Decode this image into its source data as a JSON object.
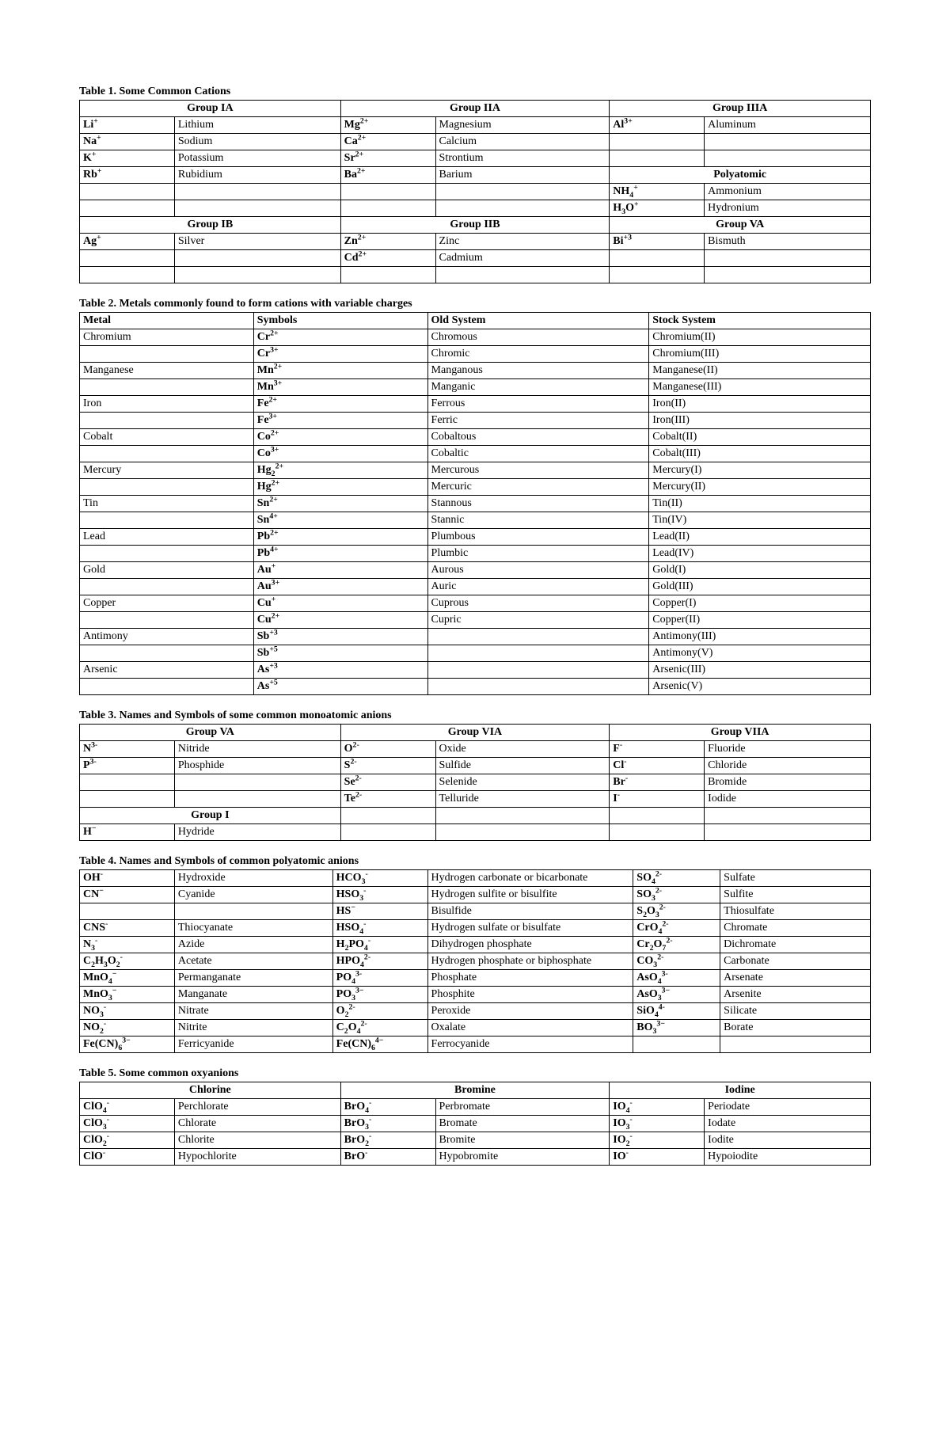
{
  "page": {
    "background_color": "#ffffff",
    "text_color": "#000000",
    "font_family": "Times New Roman",
    "body_fontsize_pt": 10.5,
    "caption_fontsize_pt": 10.5
  },
  "table1": {
    "caption": "Table 1.  Some Common Cations",
    "header_groups": [
      "Group IA",
      "Group IIA",
      "Group IIIA"
    ],
    "header_groups2": [
      "Group IB",
      "Group IIB",
      "Group VA"
    ],
    "polyatomic_label": "Polyatomic",
    "col_widths_pct": [
      12,
      21,
      12,
      22,
      12,
      21
    ],
    "rows_a": [
      [
        {
          "f": "Li",
          "c": "+"
        },
        "Lithium",
        {
          "f": "Mg",
          "c": "2+"
        },
        "Magnesium",
        {
          "f": "Al",
          "c": "3+"
        },
        "Aluminum"
      ],
      [
        {
          "f": "Na",
          "c": "+"
        },
        "Sodium",
        {
          "f": "Ca",
          "c": "2+"
        },
        "Calcium",
        null,
        null
      ],
      [
        {
          "f": "K",
          "c": "+"
        },
        "Potassium",
        {
          "f": "Sr",
          "c": "2+"
        },
        "Strontium",
        null,
        null
      ],
      [
        {
          "f": "Rb",
          "c": "+"
        },
        "Rubidium",
        {
          "f": "Ba",
          "c": "2+"
        },
        "Barium",
        "POLY_HDR",
        null
      ],
      [
        null,
        null,
        null,
        null,
        {
          "f": "NH",
          "s": "4",
          "c": "+"
        },
        "Ammonium"
      ],
      [
        null,
        null,
        null,
        null,
        {
          "f": "H",
          "s": "3",
          "f2": "O",
          "c": "+"
        },
        "Hydronium"
      ]
    ],
    "rows_b": [
      [
        {
          "f": "Ag",
          "c": "+"
        },
        "Silver",
        {
          "f": "Zn",
          "c": "2+"
        },
        "Zinc",
        {
          "f": "Bi",
          "c": "+3"
        },
        "Bismuth"
      ],
      [
        null,
        null,
        {
          "f": "Cd",
          "c": "2+"
        },
        "Cadmium",
        null,
        null
      ],
      [
        null,
        null,
        null,
        null,
        null,
        null
      ]
    ]
  },
  "table2": {
    "caption": "Table 2.  Metals commonly found to form cations with variable charges",
    "columns": [
      "Metal",
      "Symbols",
      "Old System",
      "Stock System"
    ],
    "col_widths_pct": [
      22,
      22,
      28,
      28
    ],
    "rows": [
      [
        "Chromium",
        {
          "f": "Cr",
          "c": "2+"
        },
        "Chromous",
        "Chromium(II)"
      ],
      [
        "",
        {
          "f": "Cr",
          "c": "3+"
        },
        "Chromic",
        "Chromium(III)"
      ],
      [
        "Manganese",
        {
          "f": "Mn",
          "c": "2+"
        },
        "Manganous",
        "Manganese(II)"
      ],
      [
        "",
        {
          "f": "Mn",
          "c": "3+"
        },
        "Manganic",
        "Manganese(III)"
      ],
      [
        "Iron",
        {
          "f": "Fe",
          "c": "2+"
        },
        "Ferrous",
        "Iron(II)"
      ],
      [
        "",
        {
          "f": "Fe",
          "c": "3+"
        },
        "Ferric",
        "Iron(III)"
      ],
      [
        "Cobalt",
        {
          "f": "Co",
          "c": "2+"
        },
        "Cobaltous",
        "Cobalt(II)"
      ],
      [
        "",
        {
          "f": "Co",
          "c": "3+"
        },
        "Cobaltic",
        "Cobalt(III)"
      ],
      [
        "Mercury",
        {
          "f": "Hg",
          "s": "2",
          "c": "2+"
        },
        "Mercurous",
        "Mercury(I)"
      ],
      [
        "",
        {
          "f": "Hg",
          "c": "2+"
        },
        "Mercuric",
        "Mercury(II)"
      ],
      [
        "Tin",
        {
          "f": "Sn",
          "c": "2+"
        },
        "Stannous",
        "Tin(II)"
      ],
      [
        "",
        {
          "f": "Sn",
          "c": "4+"
        },
        "Stannic",
        "Tin(IV)"
      ],
      [
        "Lead",
        {
          "f": "Pb",
          "c": "2+"
        },
        "Plumbous",
        "Lead(II)"
      ],
      [
        "",
        {
          "f": "Pb",
          "c": "4+"
        },
        "Plumbic",
        "Lead(IV)"
      ],
      [
        "Gold",
        {
          "f": "Au",
          "c": "+"
        },
        "Aurous",
        "Gold(I)"
      ],
      [
        "",
        {
          "f": "Au",
          "c": "3+"
        },
        "Auric",
        "Gold(III)"
      ],
      [
        "Copper",
        {
          "f": "Cu",
          "c": "+"
        },
        "Cuprous",
        "Copper(I)"
      ],
      [
        "",
        {
          "f": "Cu",
          "c": "2+"
        },
        "Cupric",
        "Copper(II)"
      ],
      [
        "Antimony",
        {
          "f": "Sb",
          "c": "+3"
        },
        "",
        "Antimony(III)"
      ],
      [
        "",
        {
          "f": "Sb",
          "c": "+5"
        },
        "",
        "Antimony(V)"
      ],
      [
        "Arsenic",
        {
          "f": "As",
          "c": "+3"
        },
        "",
        "Arsenic(III)"
      ],
      [
        "",
        {
          "f": "As",
          "c": "+5"
        },
        "",
        "Arsenic(V)"
      ]
    ]
  },
  "table3": {
    "caption": "Table 3.  Names and Symbols of some common monoatomic anions",
    "header_groups": [
      "Group VA",
      "Group VIA",
      "Group VIIA"
    ],
    "group1_label": "Group I",
    "col_widths_pct": [
      12,
      21,
      12,
      22,
      12,
      21
    ],
    "rows": [
      [
        {
          "f": "N",
          "c": "3-"
        },
        "Nitride",
        {
          "f": "O",
          "c": "2-"
        },
        "Oxide",
        {
          "f": "F",
          "c": "-"
        },
        "Fluoride"
      ],
      [
        {
          "f": "P",
          "c": "3-"
        },
        "Phosphide",
        {
          "f": "S",
          "c": "2-"
        },
        "Sulfide",
        {
          "f": "Cl",
          "c": "-"
        },
        "Chloride"
      ],
      [
        null,
        null,
        {
          "f": "Se",
          "c": "2-"
        },
        "Selenide",
        {
          "f": "Br",
          "c": "-"
        },
        "Bromide"
      ],
      [
        null,
        null,
        {
          "f": "Te",
          "c": "2-"
        },
        "Telluride",
        {
          "f": "I",
          "c": "-"
        },
        "Iodide"
      ]
    ],
    "rows_g1": [
      [
        {
          "f": "H",
          "c": "−"
        },
        "Hydride",
        null,
        null,
        null,
        null
      ]
    ]
  },
  "table4": {
    "caption": "Table 4.  Names and Symbols of common polyatomic anions",
    "col_widths_pct": [
      12,
      20,
      12,
      26,
      11,
      19
    ],
    "rows": [
      [
        {
          "f": "OH",
          "c": "-"
        },
        "Hydroxide",
        {
          "f": "HCO",
          "s": "3",
          "c": "-"
        },
        "Hydrogen carbonate or bicarbonate",
        {
          "f": "SO",
          "s": "4",
          "c": "2-"
        },
        "Sulfate"
      ],
      [
        {
          "f": "CN",
          "c": "−"
        },
        "Cyanide",
        {
          "f": "HSO",
          "s": "3",
          "c": "-"
        },
        "Hydrogen sulfite or bisulfite",
        {
          "f": "SO",
          "s": "3",
          "c": "2-"
        },
        "Sulfite"
      ],
      [
        null,
        null,
        {
          "f": "HS",
          "c": "−"
        },
        "Bisulfide",
        {
          "f": "S",
          "s": "2",
          "f2": "O",
          "s2": "3",
          "c": "2-"
        },
        "Thiosulfate"
      ],
      [
        {
          "f": "CNS",
          "c": "-"
        },
        "Thiocyanate",
        {
          "f": "HSO",
          "s": "4",
          "c": "-"
        },
        "Hydrogen sulfate or bisulfate",
        {
          "f": "CrO",
          "s": "4",
          "c": "2-"
        },
        "Chromate"
      ],
      [
        {
          "f": "N",
          "s": "3",
          "c": "-"
        },
        "Azide",
        {
          "f": "H",
          "s": "2",
          "f2": "PO",
          "s2": "4",
          "c": "-"
        },
        "Dihydrogen phosphate",
        {
          "f": "Cr",
          "s": "2",
          "f2": "O",
          "s2": "7",
          "c": "2-"
        },
        "Dichromate"
      ],
      [
        {
          "f": "C",
          "s": "2",
          "f2": "H",
          "s2": "3",
          "f3": "O",
          "s3": "2",
          "c": "-"
        },
        "Acetate",
        {
          "f": "HPO",
          "s": "4",
          "c": "2-"
        },
        "Hydrogen phosphate or biphosphate",
        {
          "f": "CO",
          "s": "3",
          "c": "2-"
        },
        "Carbonate"
      ],
      [
        {
          "f": "MnO",
          "s": "4",
          "c": "−"
        },
        "Permanganate",
        {
          "f": "PO",
          "s": "4",
          "c": "3-"
        },
        "Phosphate",
        {
          "f": "AsO",
          "s": "4",
          "c": "3-"
        },
        "Arsenate"
      ],
      [
        {
          "f": "MnO",
          "s": "3",
          "c": "−"
        },
        "Manganate",
        {
          "f": "PO",
          "s": "3",
          "c": "3−"
        },
        "Phosphite",
        {
          "f": "AsO",
          "s": "3",
          "c": "3−"
        },
        "Arsenite"
      ],
      [
        {
          "f": "NO",
          "s": "3",
          "c": "-"
        },
        "Nitrate",
        {
          "f": "O",
          "s": "2",
          "c": "2-"
        },
        "Peroxide",
        {
          "f": "SiO",
          "s": "4",
          "c": "4-"
        },
        "Silicate"
      ],
      [
        {
          "f": "NO",
          "s": "2",
          "c": "-"
        },
        "Nitrite",
        {
          "f": "C",
          "s": "2",
          "f2": "O",
          "s2": "4",
          "c": "2-"
        },
        "Oxalate",
        {
          "f": "BO",
          "s": "3",
          "c": "3−"
        },
        "Borate"
      ],
      [
        {
          "f": "Fe(CN)",
          "s": "6",
          "c": "3−"
        },
        "Ferricyanide",
        {
          "f": "Fe(CN)",
          "s": "6",
          "c": "4−"
        },
        "Ferrocyanide",
        null,
        null
      ]
    ]
  },
  "table5": {
    "caption": "Table 5.  Some common oxyanions",
    "header_groups": [
      "Chlorine",
      "Bromine",
      "Iodine"
    ],
    "col_widths_pct": [
      12,
      21,
      12,
      22,
      12,
      21
    ],
    "rows": [
      [
        {
          "f": "ClO",
          "s": "4",
          "c": "-"
        },
        "Perchlorate",
        {
          "f": "BrO",
          "s": "4",
          "c": "-"
        },
        "Perbromate",
        {
          "f": "IO",
          "s": "4",
          "c": "-"
        },
        "Periodate"
      ],
      [
        {
          "f": "ClO",
          "s": "3",
          "c": "-"
        },
        "Chlorate",
        {
          "f": "BrO",
          "s": "3",
          "c": "-"
        },
        "Bromate",
        {
          "f": "IO",
          "s": "3",
          "c": "-"
        },
        "Iodate"
      ],
      [
        {
          "f": "ClO",
          "s": "2",
          "c": "-"
        },
        "Chlorite",
        {
          "f": "BrO",
          "s": "2",
          "c": "-"
        },
        "Bromite",
        {
          "f": "IO",
          "s": "2",
          "c": "-"
        },
        "Iodite"
      ],
      [
        {
          "f": "ClO",
          "c": "-"
        },
        "Hypochlorite",
        {
          "f": "BrO",
          "c": "-"
        },
        "Hypobromite",
        {
          "f": "IO",
          "c": "-"
        },
        "Hypoiodite"
      ]
    ]
  }
}
